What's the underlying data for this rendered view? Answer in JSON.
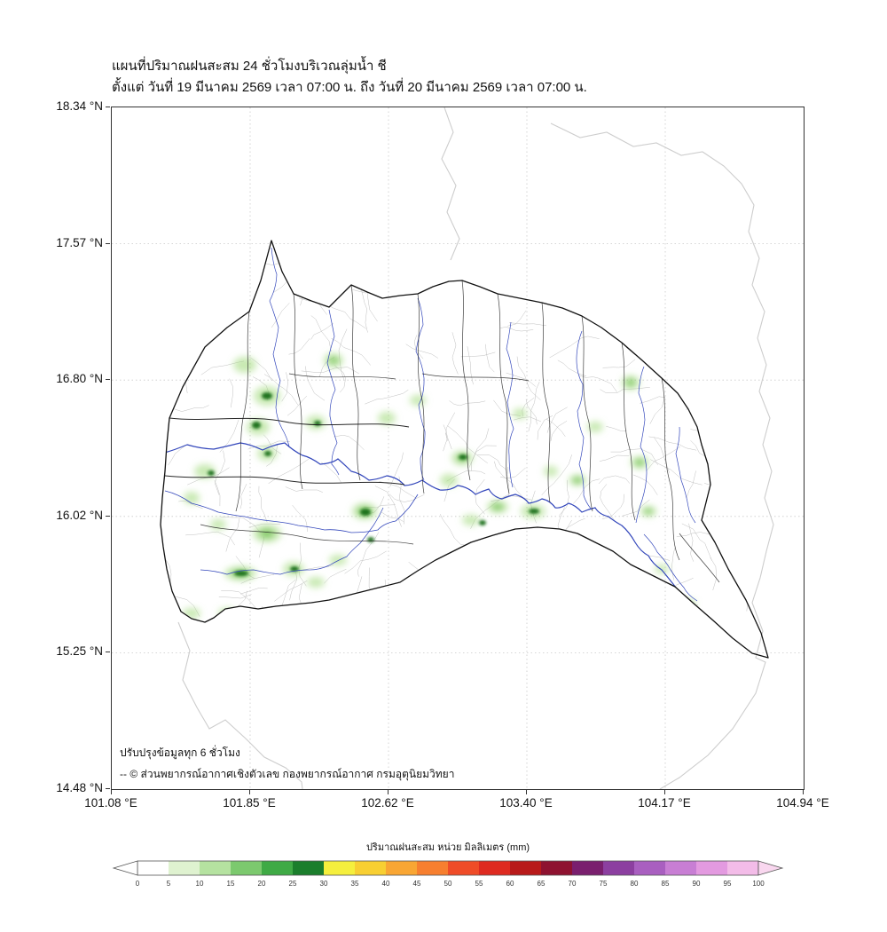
{
  "title": "แผนที่ปริมาณฝนสะสม 24 ชั่วโมงบริเวณลุ่มน้ำ ชี",
  "subtitle": "ตั้งแต่ วันที่ 19 มีนาคม 2569 เวลา 07:00 น. ถึง วันที่ 20 มีนาคม 2569 เวลา 07:00 น.",
  "map": {
    "y_ticks": [
      "18.34 °N",
      "17.57 °N",
      "16.80 °N",
      "16.02 °N",
      "15.25 °N",
      "14.48 °N"
    ],
    "x_ticks": [
      "101.08 °E",
      "101.85 °E",
      "102.62 °E",
      "103.40 °E",
      "104.17 °E",
      "104.94 °E"
    ],
    "note_line1": "ปรับปรุงข้อมูลทุก 6 ชั่วโมง",
    "note_line2": "-- © ส่วนพยากรณ์อากาศเชิงตัวเลข กองพยากรณ์อากาศ กรมอุตุนิยมวิทยา",
    "feature_colors": {
      "basin_outline": "#111111",
      "river": "#3347bb",
      "stream_network": "#bfbfbf",
      "rain_light": "#a4da7f",
      "rain_dark": "#186e18",
      "admin_boundary": "#cdcdcd"
    }
  },
  "colorbar": {
    "title": "ปริมาณฝนสะสม หน่วย มิลลิเมตร (mm)",
    "ticks": [
      "0",
      "5",
      "10",
      "15",
      "20",
      "25",
      "30",
      "35",
      "40",
      "45",
      "50",
      "55",
      "60",
      "65",
      "70",
      "75",
      "80",
      "85",
      "90",
      "95",
      "100"
    ],
    "segment_colors": [
      "#ffffff",
      "#dff2d0",
      "#b5e2a0",
      "#7cc96e",
      "#3faa45",
      "#1b7e2c",
      "#f5ef3d",
      "#f8cf32",
      "#f9a633",
      "#f77f2f",
      "#ef4c28",
      "#de2a20",
      "#b81a1a",
      "#8e1230",
      "#7a1f6e",
      "#8c3fa0",
      "#a95fc0",
      "#c87ed4",
      "#e39ae0",
      "#f3bce8"
    ],
    "arrow_left": "#ffffff",
    "arrow_right": "#f9d7ef"
  }
}
